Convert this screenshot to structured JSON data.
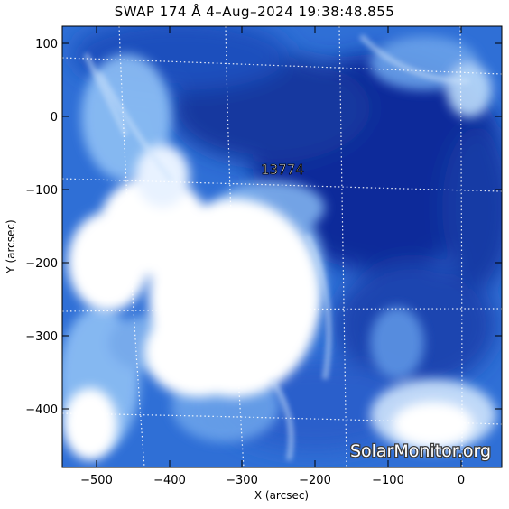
{
  "title": "SWAP 174 Å  4–Aug–2024 19:38:48.855",
  "axes": {
    "xlabel": "X (arcsec)",
    "ylabel": "Y (arcsec)",
    "x_ticks": [
      "−500",
      "−400",
      "−300",
      "−200",
      "−100",
      "0"
    ],
    "y_ticks": [
      "100",
      "0",
      "−100",
      "−200",
      "−300",
      "−400"
    ],
    "x_range_arcsec": [
      -545,
      55
    ],
    "y_range_arcsec": [
      -478,
      123
    ]
  },
  "region_label": "13774",
  "watermark": "SolarMonitor.org",
  "colors": {
    "dark_blue": "#0b2a9a",
    "mid_blue": "#2f6fd6",
    "light_blue": "#8fc0f5",
    "saturated": "#ffffff"
  }
}
